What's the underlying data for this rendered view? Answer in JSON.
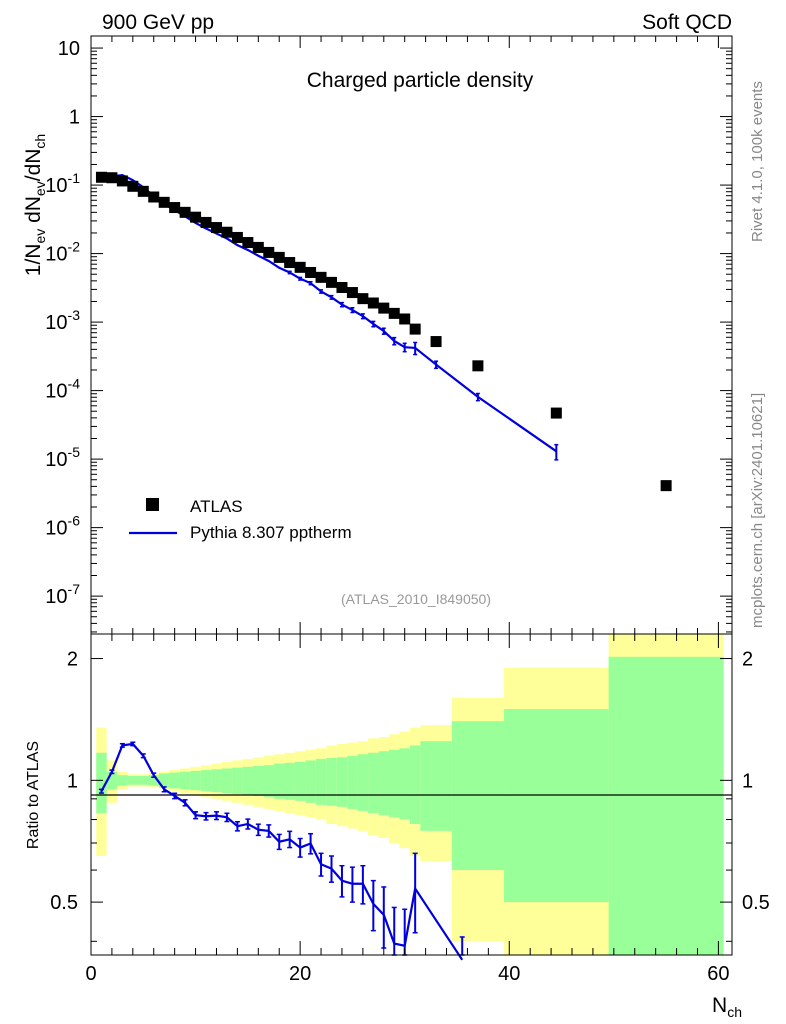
{
  "header": {
    "left_title": "900 GeV pp",
    "right_title": "Soft QCD"
  },
  "side_labels": {
    "version": "Rivet 4.1.0,  100k events",
    "source": "mcplots.cern.ch [arXiv:2401.10621]"
  },
  "colors": {
    "data": "#000000",
    "mc": "#0000dd",
    "band_inner": "#99ff99",
    "band_outer": "#ffff99"
  },
  "chart_data": [
    {
      "type": "scatter",
      "title": "Charged particle density",
      "watermark": "(ATLAS_2010_I849050)",
      "ylabel": "1/N_ev dN_ev/dN_ch",
      "yscale": "log",
      "xlim": [
        0,
        61.3
      ],
      "ylim": [
        2.8e-08,
        15
      ],
      "y_tick_labels": [
        "10^-7",
        "10^-6",
        "10^-5",
        "10^-4",
        "10^-3",
        "10^-2",
        "10^-1",
        "1",
        "10"
      ],
      "legend": {
        "position": "bottom-left",
        "entries": [
          {
            "label": "ATLAS",
            "style": "marker"
          },
          {
            "label": "Pythia 8.307 pptherm",
            "style": "line"
          }
        ]
      },
      "series": [
        {
          "name": "ATLAS",
          "x": [
            1,
            2,
            3,
            4,
            5,
            6,
            7,
            8,
            9,
            10,
            11,
            12,
            13,
            14,
            15,
            16,
            17,
            18,
            19,
            20,
            21,
            22,
            23,
            24,
            25,
            26,
            27,
            28,
            29,
            30,
            31,
            33,
            37,
            44.5,
            55
          ],
          "y": [
            0.13,
            0.128,
            0.115,
            0.096,
            0.081,
            0.067,
            0.056,
            0.047,
            0.04,
            0.034,
            0.0285,
            0.024,
            0.0205,
            0.0172,
            0.0145,
            0.0123,
            0.0104,
            0.0088,
            0.0074,
            0.0063,
            0.0053,
            0.0045,
            0.0038,
            0.0032,
            0.0027,
            0.0022,
            0.0019,
            0.0016,
            0.00134,
            0.00111,
            0.00079,
            0.00052,
            0.00023,
            4.7e-05,
            4.1e-06
          ]
        },
        {
          "name": "Pythia 8.307 pptherm",
          "x": [
            1,
            2,
            3,
            4,
            5,
            6,
            7,
            8,
            9,
            10,
            11,
            12,
            13,
            14,
            15,
            16,
            17,
            18,
            19,
            20,
            21,
            22,
            23,
            24,
            25,
            26,
            27,
            28,
            29,
            30,
            31,
            33,
            37,
            44.5
          ],
          "y": [
            0.122,
            0.135,
            0.14,
            0.118,
            0.093,
            0.069,
            0.053,
            0.043,
            0.035,
            0.028,
            0.0232,
            0.0196,
            0.0166,
            0.0133,
            0.0113,
            0.0093,
            0.0078,
            0.0062,
            0.0053,
            0.0043,
            0.0037,
            0.0028,
            0.0023,
            0.0018,
            0.0015,
            0.00122,
            0.00094,
            0.00074,
            0.00053,
            0.00043,
            0.00042,
            0.00024,
            8.1e-05,
            1.3e-05
          ],
          "err_rel": [
            0.01,
            0.01,
            0.01,
            0.01,
            0.01,
            0.012,
            0.014,
            0.016,
            0.018,
            0.02,
            0.02,
            0.022,
            0.024,
            0.025,
            0.028,
            0.03,
            0.032,
            0.035,
            0.04,
            0.045,
            0.05,
            0.055,
            0.06,
            0.07,
            0.08,
            0.08,
            0.09,
            0.1,
            0.12,
            0.14,
            0.2,
            0.12,
            0.12,
            0.25
          ]
        }
      ]
    },
    {
      "type": "line",
      "title": "",
      "xlabel": "N_ch",
      "ylabel": "Ratio to ATLAS",
      "yscale": "log",
      "xlim": [
        0,
        61.3
      ],
      "ylim": [
        0.37,
        2.3
      ],
      "x_ticks": [
        0,
        20,
        40,
        60
      ],
      "y_ticks": [
        0.5,
        1,
        2
      ],
      "reference_line": 1,
      "bands": {
        "edges": [
          0.5,
          1.5,
          2.5,
          3.5,
          4.5,
          5.5,
          6.5,
          7.5,
          8.5,
          9.5,
          10.5,
          11.5,
          12.5,
          13.5,
          14.5,
          15.5,
          16.5,
          17.5,
          18.5,
          19.5,
          20.5,
          21.5,
          22.5,
          23.5,
          24.5,
          25.5,
          26.5,
          27.5,
          28.5,
          29.5,
          30.5,
          31.5,
          34.5,
          39.5,
          49.5,
          60.5
        ],
        "inner_rel": [
          0.17,
          0.05,
          0.03,
          0.025,
          0.025,
          0.03,
          0.04,
          0.045,
          0.05,
          0.055,
          0.06,
          0.065,
          0.07,
          0.075,
          0.08,
          0.085,
          0.09,
          0.1,
          0.105,
          0.11,
          0.12,
          0.13,
          0.135,
          0.14,
          0.15,
          0.16,
          0.17,
          0.18,
          0.19,
          0.2,
          0.22,
          0.25,
          0.4,
          0.5,
          1.02
        ],
        "outer_rel": [
          0.35,
          0.12,
          0.05,
          0.035,
          0.035,
          0.04,
          0.05,
          0.06,
          0.07,
          0.08,
          0.09,
          0.1,
          0.11,
          0.12,
          0.13,
          0.14,
          0.15,
          0.16,
          0.17,
          0.18,
          0.19,
          0.2,
          0.22,
          0.23,
          0.24,
          0.25,
          0.27,
          0.28,
          0.3,
          0.32,
          0.35,
          0.37,
          0.6,
          0.9,
          1.3
        ]
      },
      "series": [
        {
          "name": "Pythia 8.307 pptherm / ATLAS",
          "x": [
            1,
            2,
            3,
            4,
            5,
            6,
            7,
            8,
            9,
            10,
            11,
            12,
            13,
            14,
            15,
            16,
            17,
            18,
            19,
            20,
            21,
            22,
            23,
            24,
            25,
            26,
            27,
            28,
            29,
            30,
            31,
            35.5
          ],
          "y": [
            0.94,
            1.05,
            1.22,
            1.23,
            1.15,
            1.03,
            0.95,
            0.915,
            0.88,
            0.82,
            0.815,
            0.818,
            0.81,
            0.77,
            0.78,
            0.755,
            0.75,
            0.705,
            0.715,
            0.682,
            0.698,
            0.62,
            0.605,
            0.565,
            0.555,
            0.555,
            0.495,
            0.465,
            0.395,
            0.39,
            0.54,
            0.36
          ],
          "err": [
            0.01,
            0.01,
            0.012,
            0.012,
            0.012,
            0.012,
            0.013,
            0.014,
            0.015,
            0.016,
            0.017,
            0.018,
            0.019,
            0.02,
            0.022,
            0.024,
            0.026,
            0.03,
            0.033,
            0.036,
            0.04,
            0.04,
            0.045,
            0.05,
            0.055,
            0.06,
            0.07,
            0.08,
            0.09,
            0.09,
            0.12,
            0.05
          ]
        }
      ]
    }
  ]
}
